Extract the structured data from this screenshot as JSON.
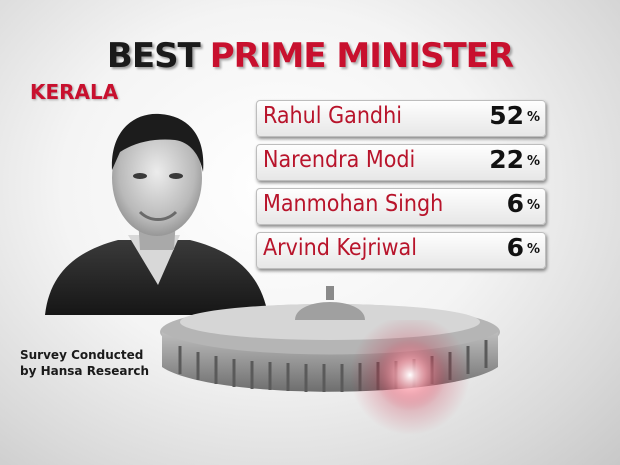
{
  "header": {
    "title_part1": "BEST",
    "title_part2": "PRIME MINISTER",
    "region": "KERALA"
  },
  "source": {
    "line1": "Survey Conducted",
    "line2": "by Hansa Research"
  },
  "colors": {
    "accent_red": "#c8102e",
    "name_red": "#b8142b",
    "text_dark": "#111111"
  },
  "chart_data": {
    "type": "bar",
    "title": "BEST PRIME MINISTER",
    "subtitle": "KERALA",
    "unit": "%",
    "categories": [
      "Rahul Gandhi",
      "Narendra Modi",
      "Manmohan Singh",
      "Arvind Kejriwal"
    ],
    "values": [
      52,
      22,
      6,
      6
    ]
  }
}
